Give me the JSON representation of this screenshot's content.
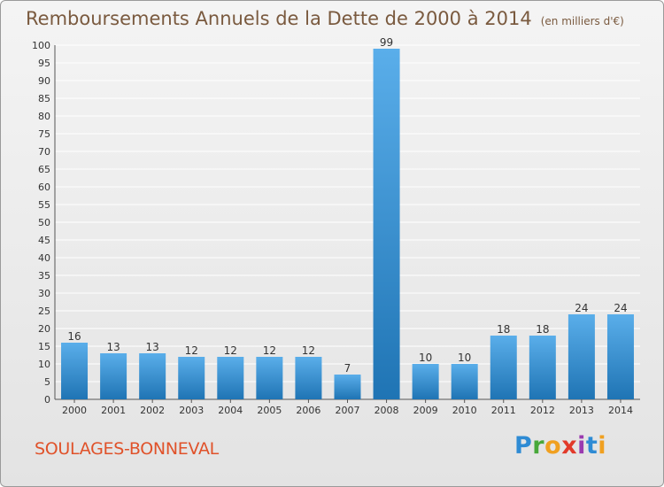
{
  "header": {
    "title": "Remboursements Annuels de la Dette de 2000 à 2014",
    "unit": "(en milliers d'€)"
  },
  "footer": {
    "commune": "SOULAGES-BONNEVAL",
    "logo_letters": [
      "P",
      "r",
      "o",
      "x",
      "i",
      "t",
      "i"
    ]
  },
  "colors": {
    "bar_top": "#5aaeea",
    "bar_bottom": "#1f74b4",
    "grid": "#ffffff",
    "title": "#7a5a3f",
    "commune": "#e0522a"
  },
  "chart_data": {
    "type": "bar",
    "categories": [
      "2000",
      "2001",
      "2002",
      "2003",
      "2004",
      "2005",
      "2006",
      "2007",
      "2008",
      "2009",
      "2010",
      "2011",
      "2012",
      "2013",
      "2014"
    ],
    "values": [
      16,
      13,
      13,
      12,
      12,
      12,
      12,
      7,
      99,
      10,
      10,
      18,
      18,
      24,
      24
    ],
    "ylim": [
      0,
      100
    ],
    "yticks": [
      0,
      5,
      10,
      15,
      20,
      25,
      30,
      35,
      40,
      45,
      50,
      55,
      60,
      65,
      70,
      75,
      80,
      85,
      90,
      95,
      100
    ],
    "grid": true,
    "data_labels": true
  }
}
